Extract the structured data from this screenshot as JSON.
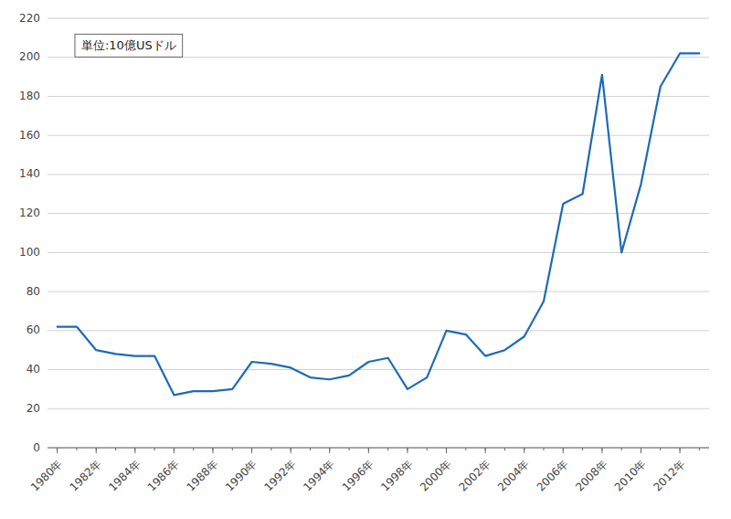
{
  "chart_data": {
    "type": "line",
    "annotation": "単位:10億USドル",
    "x": [
      1980,
      1981,
      1982,
      1983,
      1984,
      1985,
      1986,
      1987,
      1988,
      1989,
      1990,
      1991,
      1992,
      1993,
      1994,
      1995,
      1996,
      1997,
      1998,
      1999,
      2000,
      2001,
      2002,
      2003,
      2004,
      2005,
      2006,
      2007,
      2008,
      2009,
      2010,
      2011,
      2012,
      2013
    ],
    "values": [
      62,
      62,
      50,
      48,
      47,
      47,
      27,
      29,
      29,
      30,
      44,
      43,
      41,
      36,
      35,
      37,
      44,
      46,
      30,
      36,
      60,
      58,
      47,
      50,
      57,
      75,
      125,
      130,
      191,
      100,
      135,
      185,
      202,
      202
    ],
    "color": "#1f6ab5",
    "xlim": [
      1979.5,
      2013.5
    ],
    "xticks": [
      {
        "value": 1980,
        "label": "1980年"
      },
      {
        "value": 1982,
        "label": "1982年"
      },
      {
        "value": 1984,
        "label": "1984年"
      },
      {
        "value": 1986,
        "label": "1986年"
      },
      {
        "value": 1988,
        "label": "1988年"
      },
      {
        "value": 1990,
        "label": "1990年"
      },
      {
        "value": 1992,
        "label": "1992年"
      },
      {
        "value": 1994,
        "label": "1994年"
      },
      {
        "value": 1996,
        "label": "1996年"
      },
      {
        "value": 1998,
        "label": "1998年"
      },
      {
        "value": 2000,
        "label": "2000年"
      },
      {
        "value": 2002,
        "label": "2002年"
      },
      {
        "value": 2004,
        "label": "2004年"
      },
      {
        "value": 2006,
        "label": "2006年"
      },
      {
        "value": 2008,
        "label": "2008年"
      },
      {
        "value": 2010,
        "label": "2010年"
      },
      {
        "value": 2012,
        "label": "2012年"
      }
    ],
    "ylim": [
      0,
      220
    ],
    "yticks": [
      0,
      20,
      40,
      60,
      80,
      100,
      120,
      140,
      160,
      180,
      200,
      220
    ],
    "grid": true
  }
}
